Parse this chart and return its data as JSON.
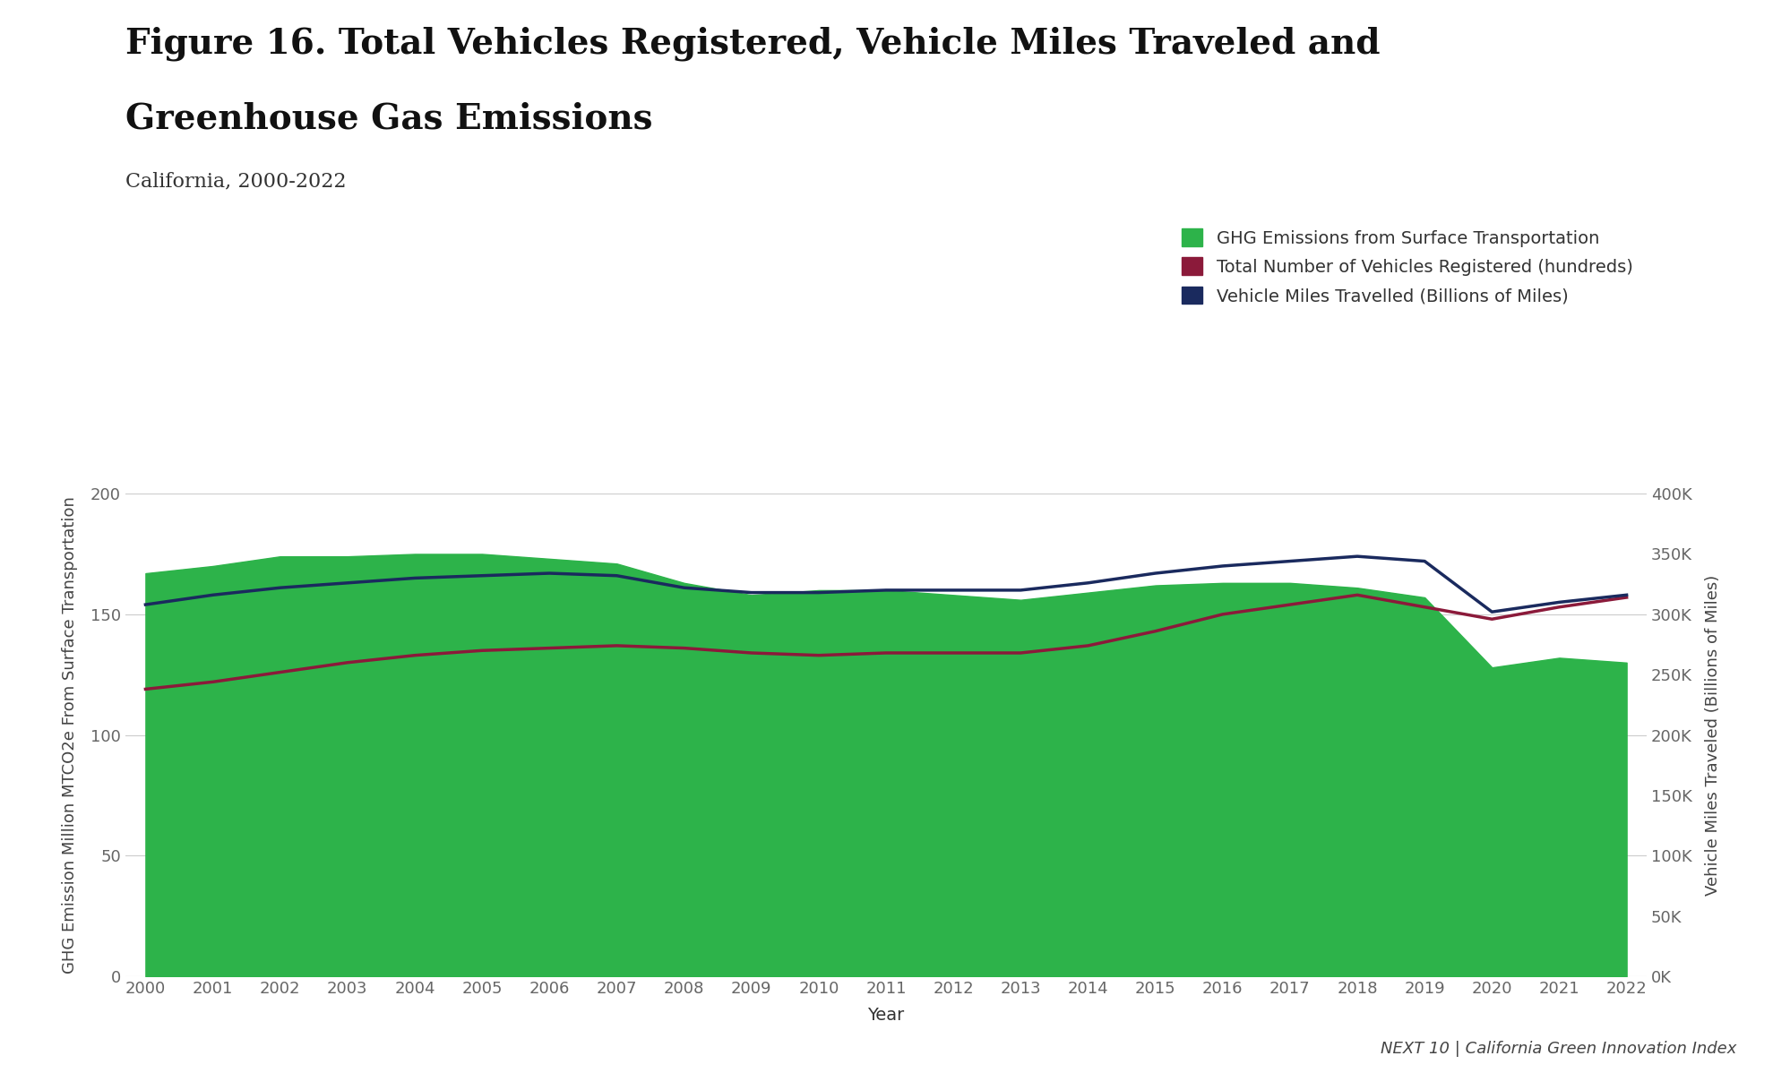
{
  "title_line1": "Figure 16. Total Vehicles Registered, Vehicle Miles Traveled and",
  "title_line2": "Greenhouse Gas Emissions",
  "subtitle": "California, 2000-2022",
  "xlabel": "Year",
  "ylabel_left": "GHG Emission Million MTCO2e From Surface Transportation",
  "ylabel_right": "Vehicle Miles Traveled (Billions of Miles)",
  "years": [
    2000,
    2001,
    2002,
    2003,
    2004,
    2005,
    2006,
    2007,
    2008,
    2009,
    2010,
    2011,
    2012,
    2013,
    2014,
    2015,
    2016,
    2017,
    2018,
    2019,
    2020,
    2021,
    2022
  ],
  "ghg": [
    167,
    170,
    174,
    174,
    175,
    175,
    173,
    171,
    163,
    158,
    160,
    160,
    158,
    156,
    159,
    162,
    163,
    163,
    161,
    157,
    128,
    132,
    130
  ],
  "vehicles": [
    119,
    122,
    126,
    130,
    133,
    135,
    136,
    137,
    136,
    134,
    133,
    134,
    134,
    134,
    137,
    143,
    150,
    154,
    158,
    153,
    148,
    153,
    157
  ],
  "vmt": [
    154,
    158,
    161,
    163,
    165,
    166,
    167,
    166,
    161,
    159,
    159,
    160,
    160,
    160,
    163,
    167,
    170,
    172,
    174,
    172,
    151,
    155,
    158
  ],
  "ghg_color": "#2db34a",
  "vehicles_color": "#8b1a3a",
  "vmt_color": "#1a2a5e",
  "background_color": "#ffffff",
  "ylim_left": [
    0,
    200
  ],
  "ylim_right": [
    0,
    400000
  ],
  "yticks_left": [
    0,
    50,
    100,
    150,
    200
  ],
  "yticks_right": [
    0,
    50000,
    100000,
    150000,
    200000,
    250000,
    300000,
    350000,
    400000
  ],
  "legend_labels": [
    "GHG Emissions from Surface Transportation",
    "Total Number of Vehicles Registered (hundreds)",
    "Vehicle Miles Travelled (Billions of Miles)"
  ],
  "footer": "NEXT 10 | California Green Innovation Index",
  "title_fontsize": 28,
  "subtitle_fontsize": 16,
  "axis_label_fontsize": 13,
  "tick_fontsize": 13,
  "legend_fontsize": 14
}
